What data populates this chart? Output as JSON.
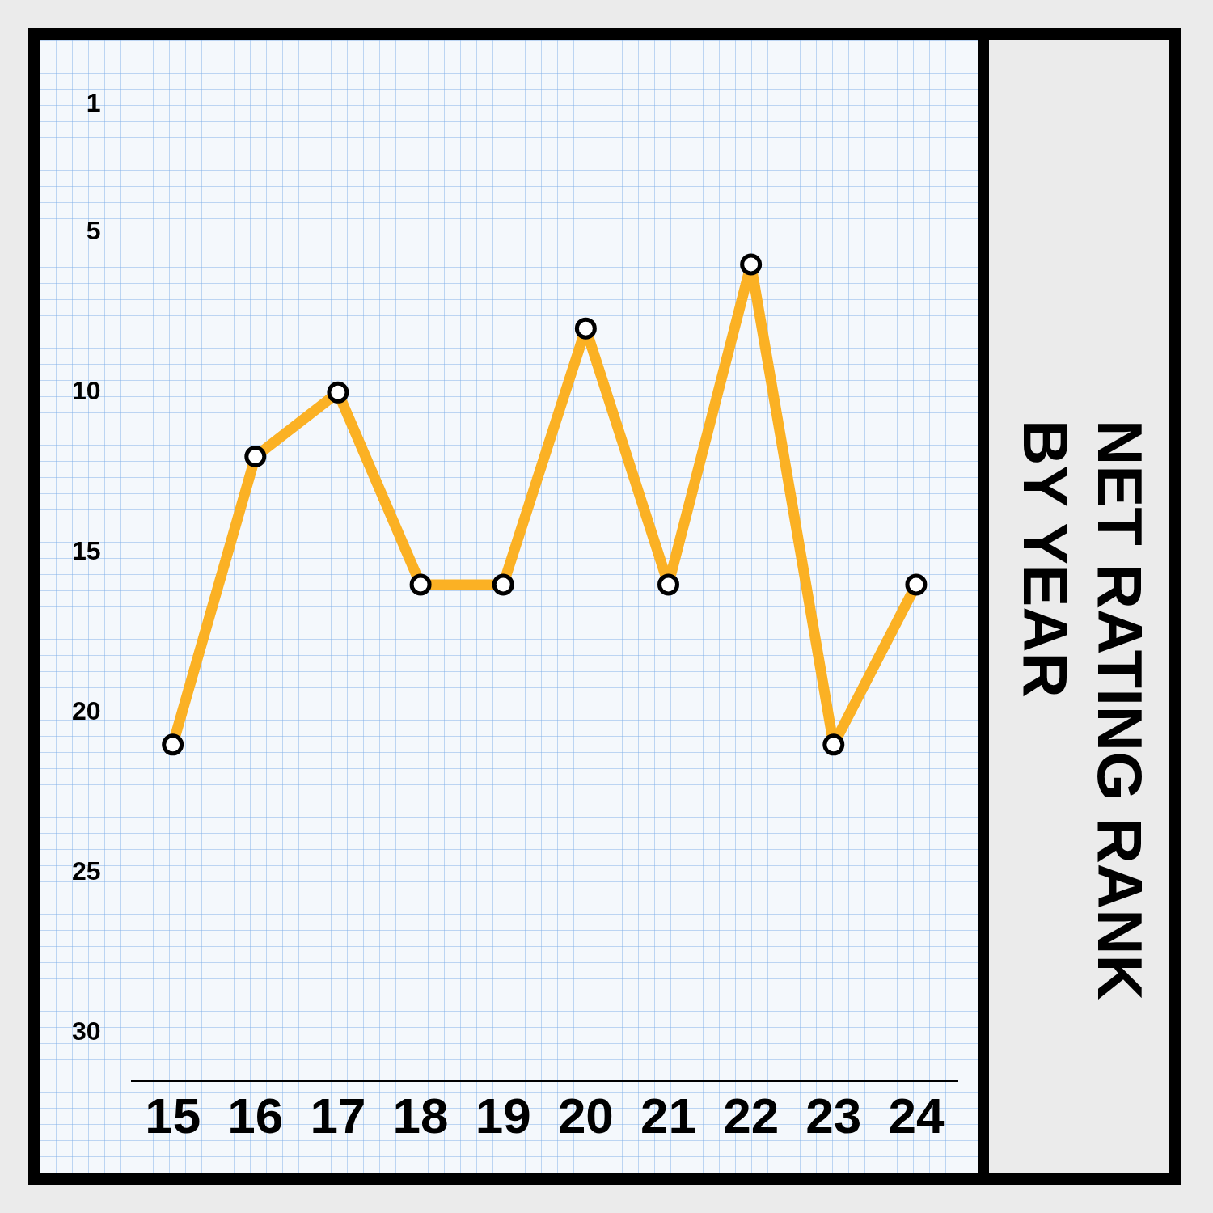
{
  "chart_data": {
    "type": "line",
    "title": "NET RATING RANK BY YEAR",
    "categories": [
      "15",
      "16",
      "17",
      "18",
      "19",
      "20",
      "21",
      "22",
      "23",
      "24"
    ],
    "series": [
      {
        "color": "#fbb124",
        "values": [
          21,
          12,
          10,
          16,
          16,
          8,
          16,
          6,
          21,
          16
        ]
      }
    ],
    "ylim": [
      31.5,
      1
    ],
    "yticks": [
      1,
      5,
      10,
      15,
      20,
      25,
      30
    ],
    "marker": "circle",
    "line_style": "solid",
    "grid": false,
    "legend": false
  }
}
